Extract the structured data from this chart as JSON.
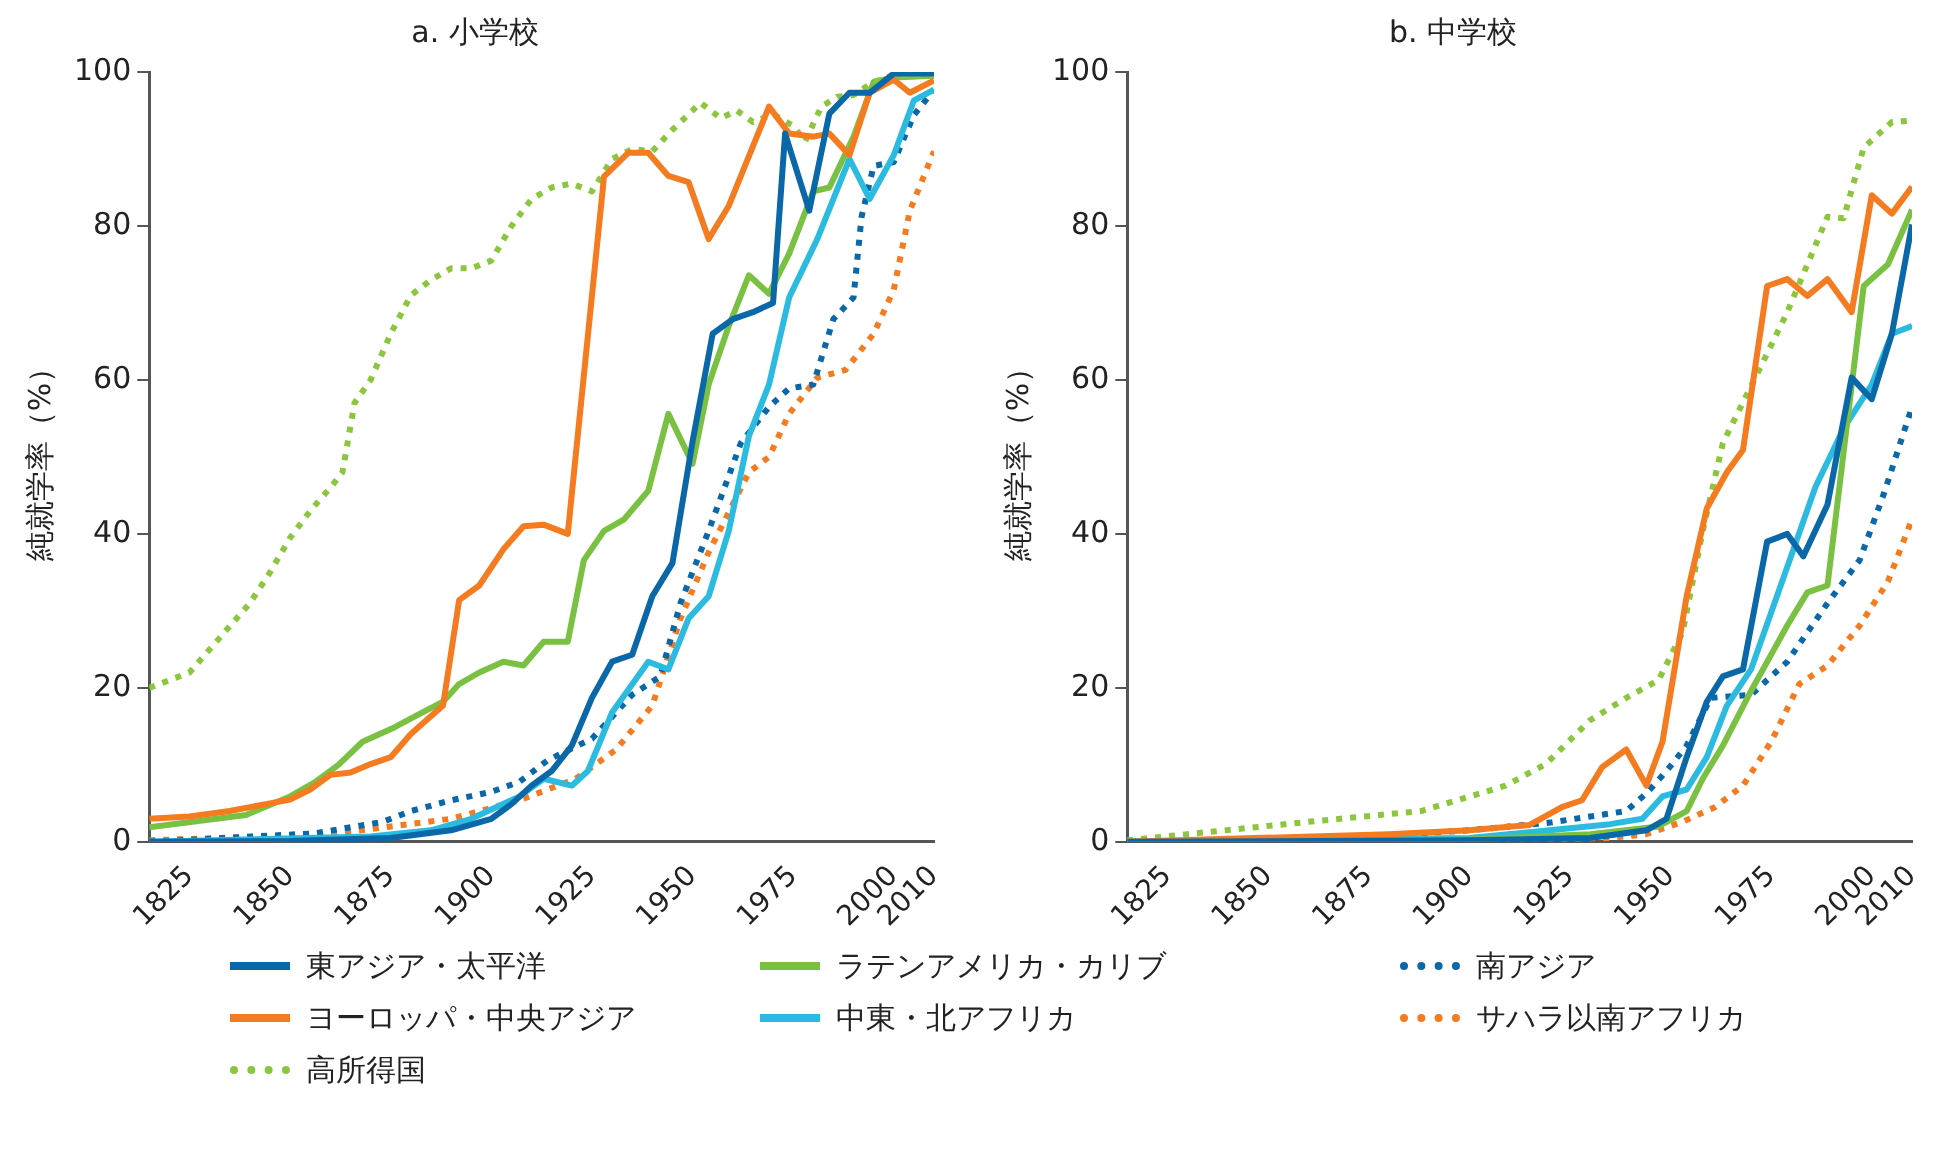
{
  "chart_data": [
    {
      "type": "line",
      "title": "a. 小学校",
      "ylabel": "純就学率（%）",
      "xlim": [
        1815,
        2010
      ],
      "xticks": [
        1825,
        1850,
        1875,
        1900,
        1925,
        1950,
        1975,
        2000,
        2010
      ],
      "ylim": [
        0,
        100
      ],
      "yticks": [
        0,
        20,
        40,
        60,
        80,
        100
      ],
      "grid": false,
      "legend": "bottom",
      "marker": "none",
      "series": [
        {
          "name": "東アジア・太平洋",
          "color": "#0a67a8",
          "line_style": "solid",
          "x": [
            1815,
            1850,
            1875,
            1890,
            1900,
            1905,
            1910,
            1915,
            1920,
            1925,
            1930,
            1935,
            1940,
            1945,
            1950,
            1955,
            1960,
            1965,
            1970,
            1973,
            1979,
            1984,
            1989,
            1994,
            2000,
            2010
          ],
          "values": [
            0,
            0.1,
            0.5,
            1.5,
            3,
            4.9,
            7.3,
            9.2,
            12.5,
            18.7,
            23.4,
            24.3,
            31.9,
            36.2,
            52,
            66,
            67.9,
            68.8,
            70,
            92,
            82,
            94.6,
            97.3,
            97.3,
            99.8,
            99.8
          ]
        },
        {
          "name": "ヨーロッパ・中央アジア",
          "color": "#f47b20",
          "line_style": "solid",
          "x": [
            1815,
            1825,
            1835,
            1845,
            1850,
            1855,
            1860,
            1865,
            1870,
            1875,
            1880,
            1888,
            1892,
            1897,
            1903,
            1908,
            1913,
            1919,
            1928,
            1934,
            1939,
            1944,
            1949,
            1954,
            1959,
            1969,
            1974,
            1980,
            1984,
            1989,
            1994,
            2000,
            2004,
            2010
          ],
          "values": [
            3,
            3.3,
            4,
            5,
            5.5,
            6.8,
            8.7,
            9,
            10.1,
            11,
            14,
            17.7,
            31.4,
            33.3,
            38,
            41,
            41.2,
            40,
            86.4,
            89.5,
            89.5,
            86.5,
            85.7,
            78.3,
            82.6,
            95.5,
            92,
            91.6,
            92,
            89.2,
            97.3,
            99,
            97.3,
            98.9
          ]
        },
        {
          "name": "高所得国",
          "color": "#8cc63f",
          "line_style": "dotted",
          "x": [
            1815,
            1825,
            1830,
            1835,
            1840,
            1845,
            1850,
            1855,
            1860,
            1863,
            1866,
            1870,
            1875,
            1880,
            1885,
            1890,
            1895,
            1900,
            1905,
            1910,
            1915,
            1920,
            1925,
            1930,
            1935,
            1940,
            1945,
            1952,
            1957,
            1961,
            1965,
            1970,
            1975,
            1978,
            1982,
            1986,
            1990,
            1995,
            2000,
            2010
          ],
          "values": [
            20,
            22,
            25,
            28,
            31,
            35,
            39.5,
            43,
            46,
            48,
            57,
            60,
            66,
            71,
            73,
            74.5,
            74.5,
            75.5,
            80,
            83.5,
            85,
            85.5,
            84.5,
            88.7,
            90,
            89.7,
            92.5,
            96,
            94,
            95,
            93.5,
            94.5,
            93,
            91,
            95.5,
            96.8,
            97,
            98.7,
            99.6,
            99.5
          ]
        },
        {
          "name": "ラテンアメリカ・カリブ",
          "color": "#7ac143",
          "line_style": "solid",
          "x": [
            1815,
            1839,
            1850,
            1856,
            1862,
            1868,
            1876,
            1881,
            1888,
            1892,
            1897,
            1903,
            1908,
            1913,
            1919,
            1923,
            1928,
            1933,
            1939,
            1944,
            1950,
            1954,
            1959,
            1964,
            1969,
            1974,
            1980,
            1984,
            1990,
            1995,
            2000,
            2010
          ],
          "values": [
            1.9,
            3.5,
            5.9,
            7.7,
            10,
            13,
            14.9,
            16.3,
            18.2,
            20.5,
            22,
            23.4,
            22.9,
            26,
            26,
            36.6,
            40.4,
            41.9,
            45.6,
            55.6,
            49.1,
            59.4,
            67,
            73.6,
            71.2,
            76.4,
            84.5,
            85,
            91.6,
            98.7,
            99.3,
            99.5
          ]
        },
        {
          "name": "中東・北アフリカ",
          "color": "#2bbbe0",
          "line_style": "solid",
          "x": [
            1815,
            1870,
            1885,
            1895,
            1907,
            1913,
            1920,
            1924,
            1930,
            1939,
            1944,
            1949,
            1954,
            1959,
            1964,
            1969,
            1974,
            1981,
            1989,
            1994,
            2000,
            2005,
            2010
          ],
          "values": [
            0,
            0.7,
            1.5,
            3,
            5.9,
            8.2,
            7.3,
            9.2,
            16.8,
            23.4,
            22.4,
            29,
            31.9,
            40.4,
            52.7,
            59.4,
            70.7,
            78.3,
            88.7,
            83.5,
            89.2,
            96.3,
            97.7
          ]
        },
        {
          "name": "南アジア",
          "color": "#0a67a8",
          "line_style": "dotted",
          "x": [
            1815,
            1856,
            1873,
            1880,
            1890,
            1900,
            1907,
            1914,
            1925,
            1935,
            1942,
            1947,
            1954,
            1962,
            1969,
            1974,
            1980,
            1985,
            1990,
            1992,
            1995,
            2000,
            2005,
            2010
          ],
          "values": [
            0,
            1.1,
            2.6,
            4,
            5.4,
            6.5,
            7.8,
            10.6,
            13.4,
            19.1,
            21.5,
            31,
            40.4,
            51.8,
            56.5,
            58.9,
            59.4,
            67.9,
            70.7,
            81.2,
            87.8,
            88.3,
            94.4,
            97.7
          ]
        },
        {
          "name": "サハラ以南アフリカ",
          "color": "#f47b20",
          "line_style": "dotted",
          "x": [
            1815,
            1860,
            1875,
            1890,
            1907,
            1921,
            1931,
            1940,
            1947,
            1954,
            1964,
            1969,
            1974,
            1981,
            1988,
            1995,
            2000,
            2004,
            2010
          ],
          "values": [
            0.2,
            1,
            2,
            3,
            5.4,
            8.2,
            12,
            17.7,
            29,
            37.6,
            48,
            50,
            55.6,
            60.3,
            61.3,
            66,
            71.7,
            82,
            89.7
          ]
        }
      ]
    },
    {
      "type": "line",
      "title": "b. 中学校",
      "ylabel": "純就学率（%）",
      "xlim": [
        1815,
        2010
      ],
      "xticks": [
        1825,
        1850,
        1875,
        1900,
        1925,
        1950,
        1975,
        2000,
        2010
      ],
      "ylim": [
        0,
        100
      ],
      "yticks": [
        0,
        20,
        40,
        60,
        80,
        100
      ],
      "grid": false,
      "marker": "none",
      "series": [
        {
          "color": "#0a67a8",
          "line_style": "solid",
          "x": [
            1815,
            1900,
            1930,
            1944,
            1949,
            1954,
            1959,
            1963,
            1968,
            1974,
            1979,
            1983,
            1989,
            1995,
            2000,
            2005,
            2010
          ],
          "values": [
            0,
            0.2,
            0.5,
            1.5,
            3,
            11,
            18.2,
            21.5,
            22.4,
            39,
            40,
            37.1,
            43.8,
            60.3,
            57.5,
            66,
            80.2
          ]
        },
        {
          "color": "#f47b20",
          "line_style": "solid",
          "x": [
            1815,
            1880,
            1900,
            1915,
            1923,
            1928,
            1933,
            1939,
            1944,
            1948,
            1954,
            1959,
            1964,
            1968,
            1974,
            1979,
            1984,
            1989,
            1995,
            2000,
            2005,
            2010
          ],
          "values": [
            0,
            1,
            1.5,
            2.2,
            4.5,
            5.4,
            9.7,
            12,
            7.3,
            13,
            31.9,
            43.3,
            48,
            50.9,
            72.2,
            73.1,
            70.9,
            73.1,
            68.8,
            84,
            81.6,
            85.1
          ]
        },
        {
          "color": "#8cc63f",
          "line_style": "dotted",
          "x": [
            1815,
            1860,
            1888,
            1909,
            1919,
            1930,
            1939,
            1947,
            1953,
            1958,
            1963,
            1972,
            1979,
            1989,
            1993,
            1998,
            2005,
            2010
          ],
          "values": [
            0.2,
            2.6,
            4,
            7.3,
            10.1,
            15.8,
            18.7,
            21,
            27.2,
            40.4,
            51.8,
            61.3,
            68.8,
            81.2,
            81,
            90.2,
            93.5,
            93.7
          ]
        },
        {
          "color": "#7ac143",
          "line_style": "solid",
          "x": [
            1815,
            1900,
            1930,
            1947,
            1954,
            1958,
            1963,
            1970,
            1979,
            1984,
            1989,
            1998,
            2004,
            2010
          ],
          "values": [
            0,
            0.3,
            1,
            2,
            4,
            8.2,
            12.5,
            19.6,
            28.1,
            32.4,
            33.3,
            72.2,
            75,
            82.1
          ]
        },
        {
          "color": "#2bbbe0",
          "line_style": "solid",
          "x": [
            1815,
            1900,
            1920,
            1935,
            1943,
            1948,
            1954,
            1959,
            1964,
            1970,
            1979,
            1986,
            1993,
            2000,
            2005,
            2010
          ],
          "values": [
            0,
            0.5,
            1.5,
            2.3,
            3,
            5.9,
            6.8,
            11,
            17.7,
            22.4,
            35.7,
            46.1,
            53.7,
            59.4,
            66,
            67
          ]
        },
        {
          "color": "#0a67a8",
          "line_style": "dotted",
          "x": [
            1815,
            1870,
            1900,
            1920,
            1939,
            1944,
            1949,
            1954,
            1960,
            1970,
            1979,
            1989,
            1997,
            2003,
            2010
          ],
          "values": [
            0,
            0.5,
            1.5,
            2.5,
            4,
            6.3,
            9.2,
            12.5,
            18.7,
            19.1,
            23.4,
            31,
            36.6,
            45.2,
            56.5
          ]
        },
        {
          "color": "#f47b20",
          "line_style": "dotted",
          "x": [
            1815,
            1900,
            1935,
            1944,
            1953,
            1961,
            1968,
            1975,
            1982,
            1989,
            1997,
            2004,
            2010
          ],
          "values": [
            0,
            0.1,
            0.5,
            1,
            2.6,
            4.5,
            7.3,
            13,
            20.5,
            22.9,
            28.1,
            33.8,
            41.9
          ]
        }
      ]
    }
  ]
}
